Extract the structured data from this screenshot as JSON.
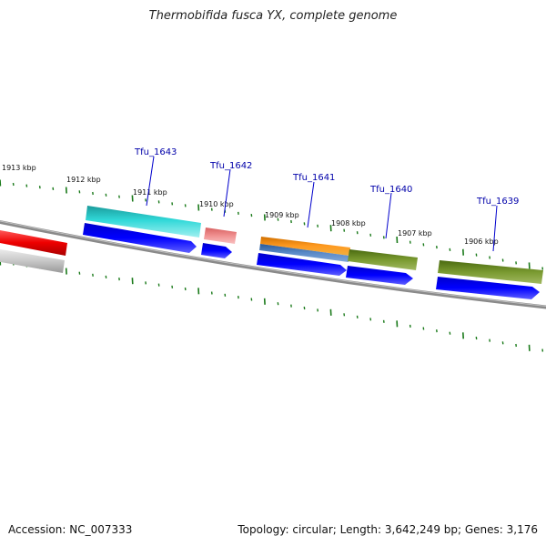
{
  "title": "Thermobifida fusca YX, complete genome",
  "footer": {
    "accession": "Accession: NC_007333",
    "summary": "Topology: circular; Length: 3,642,249 bp; Genes: 3,176"
  },
  "scale_labels": [
    "1913 kbp",
    "1912 kbp",
    "1911 kbp",
    "1910 kbp",
    "1909 kbp",
    "1908 kbp",
    "1907 kbp",
    "1906 kbp"
  ],
  "gene_labels": [
    "Tfu_1643",
    "Tfu_1642",
    "Tfu_1641",
    "Tfu_1640",
    "Tfu_1639"
  ],
  "colors": {
    "backbone": "#7a7a7a",
    "cds": "#0000ee",
    "tick": "#1a7a1a",
    "label_line": "#0000cc",
    "red_feature": "#ee0000",
    "cyan_feature": "#22c8c8",
    "pink_feature": "#ee8080",
    "orange_feature": "#f08c10",
    "steelblue_feature": "#4a7ab8",
    "olive_feature": "#6b8e23"
  }
}
